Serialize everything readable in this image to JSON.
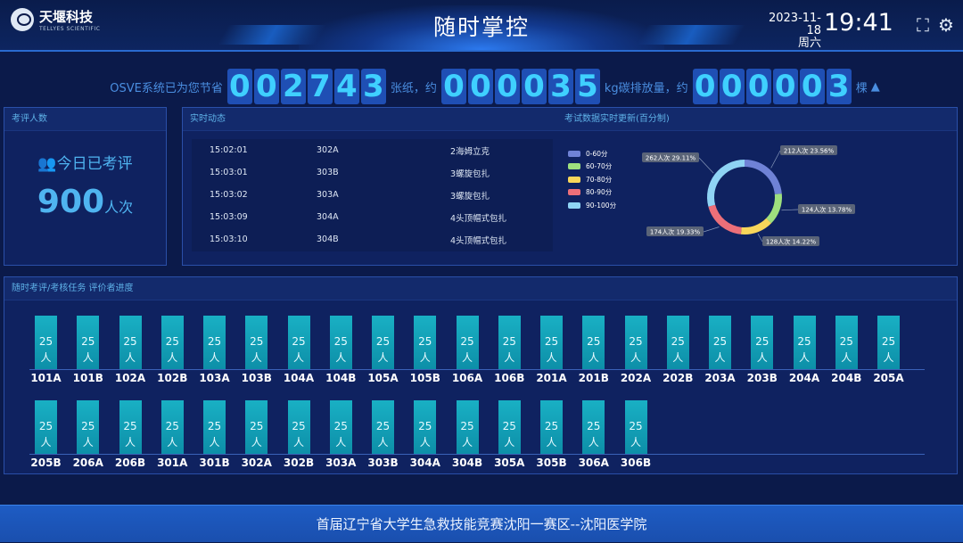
{
  "header": {
    "logo_name": "天堰科技",
    "logo_sub": "TELLYES SCIENTIFIC",
    "title": "随时掌控",
    "date": "2023-11-18",
    "weekday": "周六",
    "time": "19:41"
  },
  "counter": {
    "prefix": "OSVE系统已为您节省",
    "paper": "002743",
    "paper_unit": "张纸，约",
    "carbon": "000035",
    "carbon_unit": "kg碳排放量，约",
    "trees": "000003",
    "trees_unit": "棵"
  },
  "examinees": {
    "title": "考评人数",
    "today_label": "今日已考评",
    "count": "900",
    "unit": "人次"
  },
  "feed": {
    "title": "实时动态",
    "rows": [
      {
        "time": "15:02:01",
        "station": "302A",
        "task": "2海姆立克"
      },
      {
        "time": "15:03:01",
        "station": "303B",
        "task": "3螺旋包扎"
      },
      {
        "time": "15:03:02",
        "station": "303A",
        "task": "3螺旋包扎"
      },
      {
        "time": "15:03:09",
        "station": "304A",
        "task": "4头顶帽式包扎"
      },
      {
        "time": "15:03:10",
        "station": "304B",
        "task": "4头顶帽式包扎"
      }
    ]
  },
  "chart_data": {
    "type": "pie",
    "title": "考试数据实时更新(百分制)",
    "donut": true,
    "legend": "left",
    "categories": [
      "0-60分",
      "60-70分",
      "70-80分",
      "80-90分",
      "90-100分"
    ],
    "values": [
      212,
      124,
      128,
      174,
      262
    ],
    "labels": [
      "212人次 23.56%",
      "124人次 13.78%",
      "128人次 14.22%",
      "174人次 19.33%",
      "262人次 29.11%"
    ],
    "colors": [
      "#6f82d6",
      "#9ee07e",
      "#f8d65a",
      "#ec6f79",
      "#8fd4f4"
    ]
  },
  "progress": {
    "title": "随时考评/考核任务 评价者进度",
    "value": "25",
    "unit": "人",
    "row1": [
      "101A",
      "101B",
      "102A",
      "102B",
      "103A",
      "103B",
      "104A",
      "104B",
      "105A",
      "105B",
      "106A",
      "106B",
      "201A",
      "201B",
      "202A",
      "202B",
      "203A",
      "203B",
      "204A",
      "204B",
      "205A"
    ],
    "row2": [
      "205B",
      "206A",
      "206B",
      "301A",
      "301B",
      "302A",
      "302B",
      "303A",
      "303B",
      "304A",
      "304B",
      "305A",
      "305B",
      "306A",
      "306B"
    ]
  },
  "footer": "首届辽宁省大学生急救技能竞赛沈阳一赛区--沈阳医学院"
}
